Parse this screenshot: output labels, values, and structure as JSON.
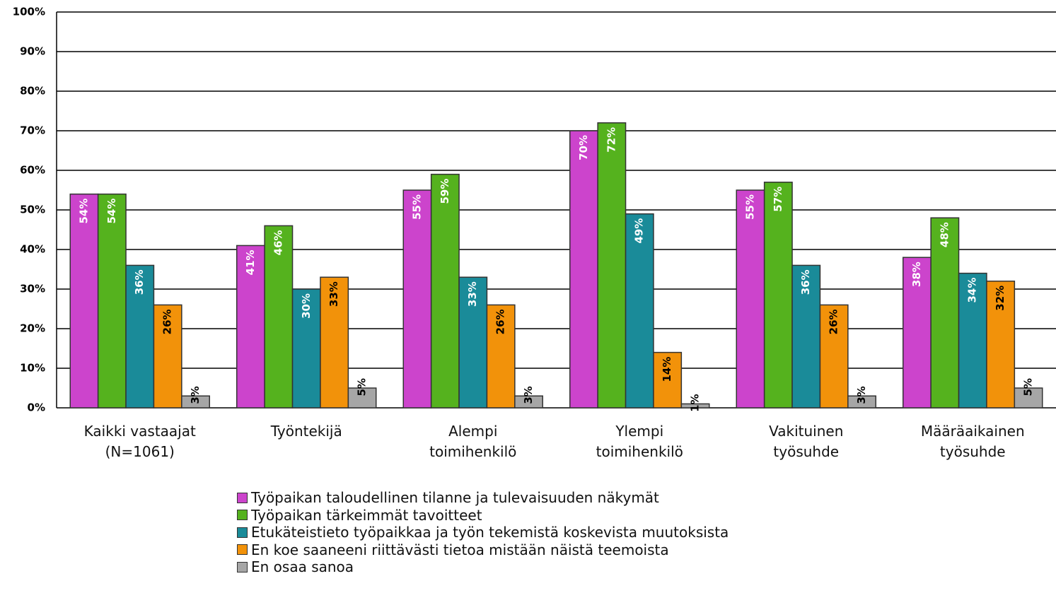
{
  "chart_data": {
    "type": "bar",
    "categories": [
      "Kaikki vastaajat\n(N=1061)",
      "Työntekijä",
      "Alempi\ntoimihenkilö",
      "Ylempi\ntoimihenkilö",
      "Vakituinen\ntyösuhde",
      "Määräaikainen\ntyösuhde"
    ],
    "series": [
      {
        "name": "Työpaikan taloudellinen tilanne ja tulevaisuuden näkymät",
        "color": "#cc44cc",
        "values": [
          54,
          41,
          55,
          70,
          55,
          38
        ],
        "value_labels": [
          "54%",
          "41%",
          "55%",
          "70%",
          "55%",
          "38%"
        ]
      },
      {
        "name": "Työpaikan tärkeimmät tavoitteet",
        "color": "#55b21e",
        "values": [
          54,
          46,
          59,
          72,
          57,
          48
        ],
        "value_labels": [
          "54%",
          "46%",
          "59%",
          "72%",
          "57%",
          "48%"
        ]
      },
      {
        "name": "Etukäteistieto työpaikkaa ja työn tekemistä koskevista muutoksista",
        "color": "#1a8b99",
        "values": [
          36,
          30,
          33,
          49,
          36,
          34
        ],
        "value_labels": [
          "36%",
          "30%",
          "33%",
          "49%",
          "36%",
          "34%"
        ]
      },
      {
        "name": "En koe saaneeni riittävästi tietoa mistään näistä teemoista",
        "color": "#f2920a",
        "values": [
          26,
          33,
          26,
          14,
          26,
          32
        ],
        "value_labels": [
          "26%",
          "33%",
          "26%",
          "14%",
          "26%",
          "32%"
        ]
      },
      {
        "name": "En osaa sanoa",
        "color": "#a6a6a6",
        "values": [
          3,
          5,
          3,
          1,
          3,
          5
        ],
        "value_labels": [
          "3%",
          "5%",
          "3%",
          "1%",
          "3%",
          "5%"
        ]
      }
    ],
    "ylim": [
      0,
      100
    ],
    "yticks": [
      {
        "value": 0,
        "label": "0%"
      },
      {
        "value": 10,
        "label": "10%"
      },
      {
        "value": 20,
        "label": "20%"
      },
      {
        "value": 30,
        "label": "30%"
      },
      {
        "value": 40,
        "label": "40%"
      },
      {
        "value": 50,
        "label": "50%"
      },
      {
        "value": 60,
        "label": "60%"
      },
      {
        "value": 70,
        "label": "70%"
      },
      {
        "value": 80,
        "label": "80%"
      },
      {
        "value": 90,
        "label": "90%"
      },
      {
        "value": 100,
        "label": "100%"
      }
    ],
    "grid": true
  }
}
